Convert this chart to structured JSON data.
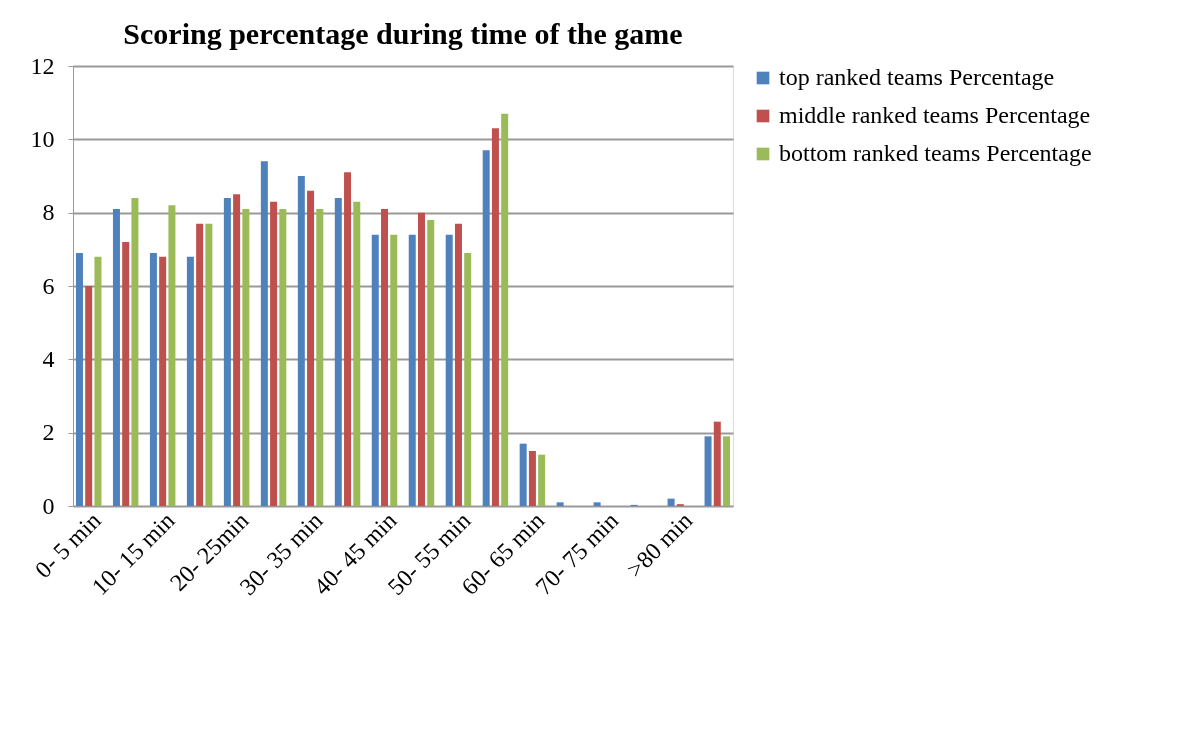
{
  "chart_data": {
    "type": "bar",
    "title": "Scoring percentage during time of the game",
    "categories": [
      "0- 5 min",
      null,
      "10- 15 min",
      null,
      "20- 25min",
      null,
      "30- 35 min",
      null,
      "40- 45 min",
      null,
      "50- 55 min",
      null,
      "60- 65 min",
      null,
      "70- 75 min",
      null,
      ">80 min",
      null
    ],
    "series": [
      {
        "name": "top ranked teams Percentage",
        "color": "#4f81bd",
        "values": [
          6.9,
          8.1,
          6.9,
          6.8,
          8.4,
          9.4,
          9.0,
          8.4,
          7.4,
          7.4,
          7.4,
          9.7,
          1.7,
          0.1,
          0.1,
          0.03,
          0.2,
          1.9
        ]
      },
      {
        "name": "middle ranked teams Percentage",
        "color": "#c0504d",
        "values": [
          6.0,
          7.2,
          6.8,
          7.7,
          8.5,
          8.3,
          8.6,
          9.1,
          8.1,
          8.0,
          7.7,
          10.3,
          1.5,
          0,
          0,
          0,
          0.05,
          2.3
        ]
      },
      {
        "name": "bottom ranked teams Percentage",
        "color": "#9bbb59",
        "values": [
          6.8,
          8.4,
          8.2,
          7.7,
          8.1,
          8.1,
          8.1,
          8.3,
          7.4,
          7.8,
          6.9,
          10.7,
          1.4,
          0,
          0,
          0,
          0,
          1.9
        ]
      }
    ],
    "ylim": [
      0,
      12
    ],
    "yticks": [
      0,
      2,
      4,
      6,
      8,
      10,
      12
    ],
    "grid": "y",
    "legend": "right"
  }
}
